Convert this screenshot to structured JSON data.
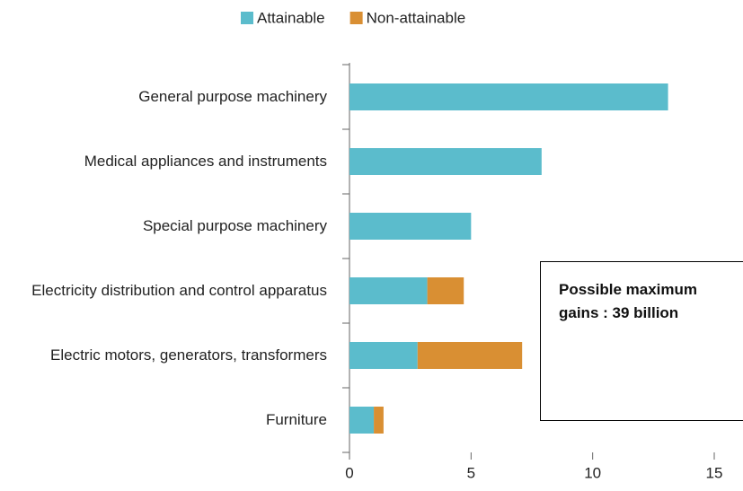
{
  "chart_data": {
    "type": "bar",
    "orientation": "horizontal",
    "stacked": true,
    "categories": [
      "General purpose machinery",
      "Medical appliances and instruments",
      "Special purpose machinery",
      "Electricity distribution and control apparatus",
      "Electric motors, generators, transformers",
      "Furniture"
    ],
    "series": [
      {
        "name": "Attainable",
        "color": "#5bbccc",
        "values": [
          13.1,
          7.9,
          5.0,
          3.2,
          2.8,
          1.0
        ]
      },
      {
        "name": "Non-attainable",
        "color": "#d98f33",
        "values": [
          0,
          0,
          0,
          1.5,
          4.3,
          0.4
        ]
      }
    ],
    "xlim": [
      0,
      15
    ],
    "xticks": [
      0,
      5,
      10,
      15
    ],
    "legend": "top",
    "annotations": [
      "Possible maximum gains : 39 billion"
    ]
  }
}
